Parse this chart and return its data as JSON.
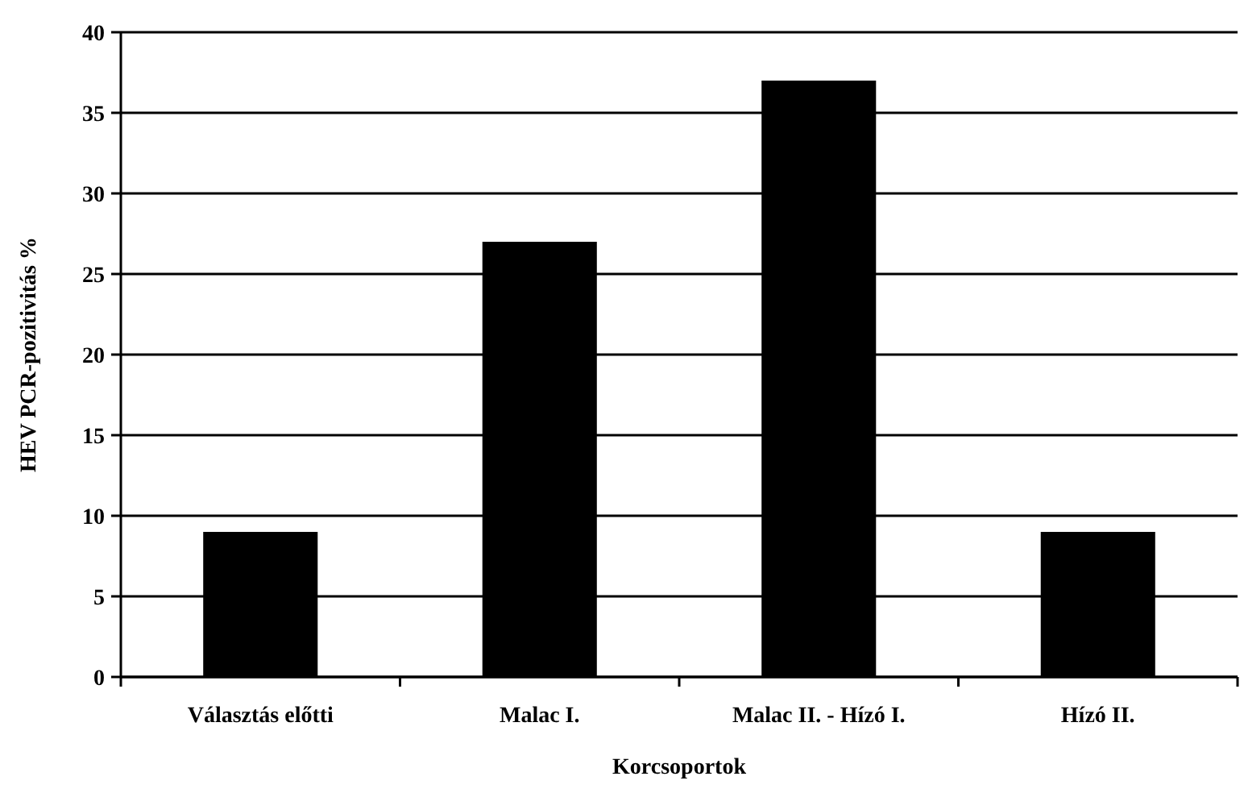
{
  "chart_data": {
    "type": "bar",
    "xlabel": "Korcsoportok",
    "ylabel": "HEV PCR-pozitivitás %",
    "categories": [
      "Választás előtti",
      "Malac I.",
      "Malac II. - Hízó I.",
      "Hízó II."
    ],
    "values": [
      9,
      27,
      37,
      9
    ],
    "color": "#000000",
    "ylim": [
      0,
      40
    ],
    "yticks": [
      0,
      5,
      10,
      15,
      20,
      25,
      30,
      35,
      40
    ],
    "grid": "y"
  }
}
